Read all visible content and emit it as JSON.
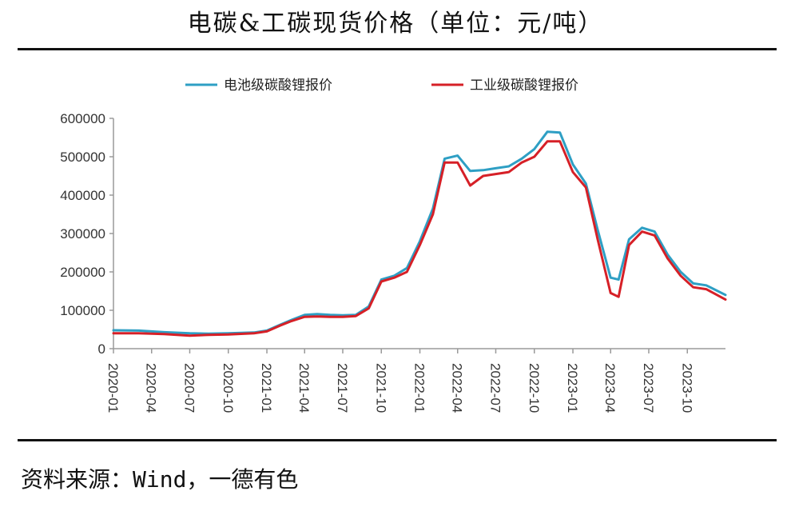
{
  "title": "电碳&工碳现货价格（单位：元/吨）",
  "source": "资料来源：Wind，一德有色",
  "chart_data": {
    "type": "line",
    "title": "电碳&工碳现货价格（单位：元/吨）",
    "xlabel": "",
    "ylabel": "",
    "ylim": [
      0,
      600000
    ],
    "yticks": [
      "0",
      "100000",
      "200000",
      "300000",
      "400000",
      "500000",
      "600000"
    ],
    "xticks": [
      "2020-01",
      "2020-04",
      "2020-07",
      "2020-10",
      "2021-01",
      "2021-04",
      "2021-07",
      "2021-10",
      "2022-01",
      "2022-04",
      "2022-07",
      "2022-10",
      "2023-01",
      "2023-04",
      "2023-07",
      "2023-10"
    ],
    "legend_position": "top",
    "grid": false,
    "series": [
      {
        "name": "电池级碳酸锂报价",
        "color": "#2e9fc4",
        "points": [
          [
            "2020-01-01",
            48000
          ],
          [
            "2020-03-01",
            47000
          ],
          [
            "2020-05-01",
            43000
          ],
          [
            "2020-07-01",
            40000
          ],
          [
            "2020-08-15",
            39000
          ],
          [
            "2020-10-01",
            40000
          ],
          [
            "2020-12-01",
            42000
          ],
          [
            "2021-01-01",
            47000
          ],
          [
            "2021-02-01",
            62000
          ],
          [
            "2021-03-01",
            75000
          ],
          [
            "2021-04-01",
            88000
          ],
          [
            "2021-05-01",
            90000
          ],
          [
            "2021-06-01",
            88000
          ],
          [
            "2021-07-01",
            87000
          ],
          [
            "2021-08-01",
            88000
          ],
          [
            "2021-09-01",
            110000
          ],
          [
            "2021-10-01",
            180000
          ],
          [
            "2021-11-01",
            190000
          ],
          [
            "2021-12-01",
            210000
          ],
          [
            "2022-01-01",
            280000
          ],
          [
            "2022-02-01",
            365000
          ],
          [
            "2022-03-01",
            495000
          ],
          [
            "2022-04-01",
            503000
          ],
          [
            "2022-05-01",
            463000
          ],
          [
            "2022-06-01",
            465000
          ],
          [
            "2022-07-01",
            470000
          ],
          [
            "2022-08-01",
            475000
          ],
          [
            "2022-09-01",
            495000
          ],
          [
            "2022-10-01",
            520000
          ],
          [
            "2022-11-01",
            565000
          ],
          [
            "2022-12-01",
            563000
          ],
          [
            "2023-01-01",
            480000
          ],
          [
            "2023-02-01",
            430000
          ],
          [
            "2023-03-01",
            310000
          ],
          [
            "2023-04-01",
            185000
          ],
          [
            "2023-04-20",
            180000
          ],
          [
            "2023-05-15",
            285000
          ],
          [
            "2023-06-15",
            315000
          ],
          [
            "2023-07-15",
            305000
          ],
          [
            "2023-08-15",
            245000
          ],
          [
            "2023-09-15",
            200000
          ],
          [
            "2023-10-15",
            170000
          ],
          [
            "2023-11-15",
            165000
          ],
          [
            "2023-12-31",
            140000
          ]
        ]
      },
      {
        "name": "工业级碳酸锂报价",
        "color": "#d62027",
        "points": [
          [
            "2020-01-01",
            40000
          ],
          [
            "2020-03-01",
            40000
          ],
          [
            "2020-05-01",
            38000
          ],
          [
            "2020-07-01",
            34000
          ],
          [
            "2020-08-15",
            36000
          ],
          [
            "2020-10-01",
            37000
          ],
          [
            "2020-12-01",
            40000
          ],
          [
            "2021-01-01",
            45000
          ],
          [
            "2021-02-01",
            60000
          ],
          [
            "2021-03-01",
            72000
          ],
          [
            "2021-04-01",
            83000
          ],
          [
            "2021-05-01",
            84000
          ],
          [
            "2021-06-01",
            83000
          ],
          [
            "2021-07-01",
            83000
          ],
          [
            "2021-08-01",
            85000
          ],
          [
            "2021-09-01",
            105000
          ],
          [
            "2021-10-01",
            175000
          ],
          [
            "2021-11-01",
            185000
          ],
          [
            "2021-12-01",
            200000
          ],
          [
            "2022-01-01",
            270000
          ],
          [
            "2022-02-01",
            350000
          ],
          [
            "2022-03-01",
            485000
          ],
          [
            "2022-04-01",
            485000
          ],
          [
            "2022-05-01",
            425000
          ],
          [
            "2022-06-01",
            450000
          ],
          [
            "2022-07-01",
            455000
          ],
          [
            "2022-08-01",
            460000
          ],
          [
            "2022-09-01",
            485000
          ],
          [
            "2022-10-01",
            500000
          ],
          [
            "2022-11-01",
            540000
          ],
          [
            "2022-12-01",
            540000
          ],
          [
            "2023-01-01",
            460000
          ],
          [
            "2023-02-01",
            420000
          ],
          [
            "2023-03-01",
            285000
          ],
          [
            "2023-04-01",
            145000
          ],
          [
            "2023-04-20",
            135000
          ],
          [
            "2023-05-15",
            270000
          ],
          [
            "2023-06-15",
            305000
          ],
          [
            "2023-07-15",
            295000
          ],
          [
            "2023-08-15",
            235000
          ],
          [
            "2023-09-15",
            190000
          ],
          [
            "2023-10-15",
            160000
          ],
          [
            "2023-11-15",
            155000
          ],
          [
            "2023-12-31",
            128000
          ]
        ]
      }
    ]
  }
}
